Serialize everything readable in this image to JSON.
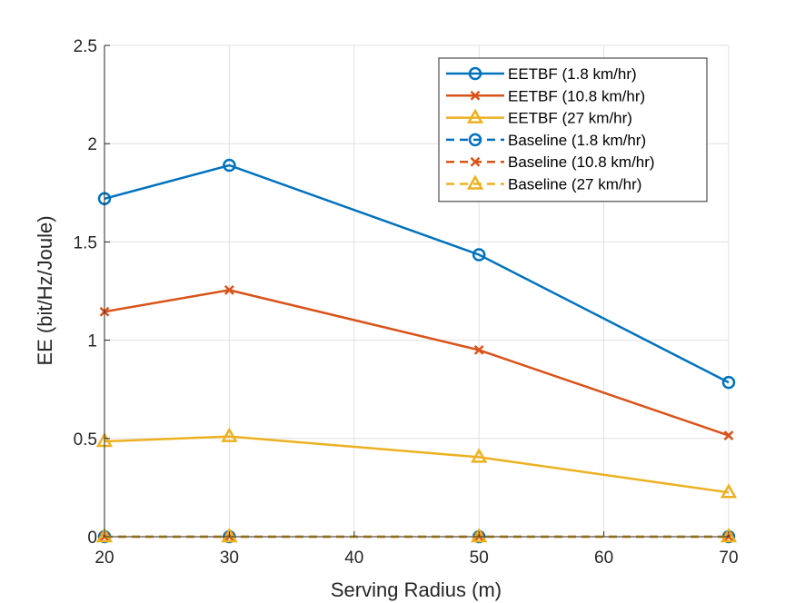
{
  "chart_data": {
    "type": "line",
    "title": "",
    "xlabel": "Serving Radius (m)",
    "ylabel": "EE (bit/Hz/Joule)",
    "xlim": [
      20,
      70
    ],
    "ylim": [
      0,
      2.5
    ],
    "xticks": [
      20,
      30,
      40,
      50,
      60,
      70
    ],
    "yticks": [
      0,
      0.5,
      1,
      1.5,
      2,
      2.5
    ],
    "xtick_labels": [
      "20",
      "30",
      "40",
      "50",
      "60",
      "70"
    ],
    "ytick_labels": [
      "0",
      "0.5",
      "1",
      "1.5",
      "2",
      "2.5"
    ],
    "grid": true,
    "legend_position": "top-right",
    "x": [
      20,
      30,
      50,
      70
    ],
    "series": [
      {
        "name": "EETBF (1.8 km/hr)",
        "values": [
          1.72,
          1.89,
          1.435,
          0.785
        ],
        "color": "#0072BD",
        "marker": "circle",
        "line": "solid"
      },
      {
        "name": "EETBF (10.8 km/hr)",
        "values": [
          1.145,
          1.255,
          0.95,
          0.515
        ],
        "color": "#D95319",
        "marker": "x",
        "line": "solid"
      },
      {
        "name": "EETBF (27 km/hr)",
        "values": [
          0.485,
          0.51,
          0.405,
          0.225
        ],
        "color": "#EDB120",
        "marker": "triangle",
        "line": "solid"
      },
      {
        "name": "Baseline (1.8 km/hr)",
        "values": [
          0,
          0,
          0,
          0
        ],
        "color": "#0072BD",
        "marker": "circle",
        "line": "dashed"
      },
      {
        "name": "Baseline (10.8 km/hr)",
        "values": [
          0,
          0,
          0,
          0
        ],
        "color": "#D95319",
        "marker": "x",
        "line": "dashed"
      },
      {
        "name": "Baseline (27 km/hr)",
        "values": [
          0,
          0,
          0,
          0
        ],
        "color": "#EDB120",
        "marker": "triangle",
        "line": "dashed"
      }
    ]
  }
}
